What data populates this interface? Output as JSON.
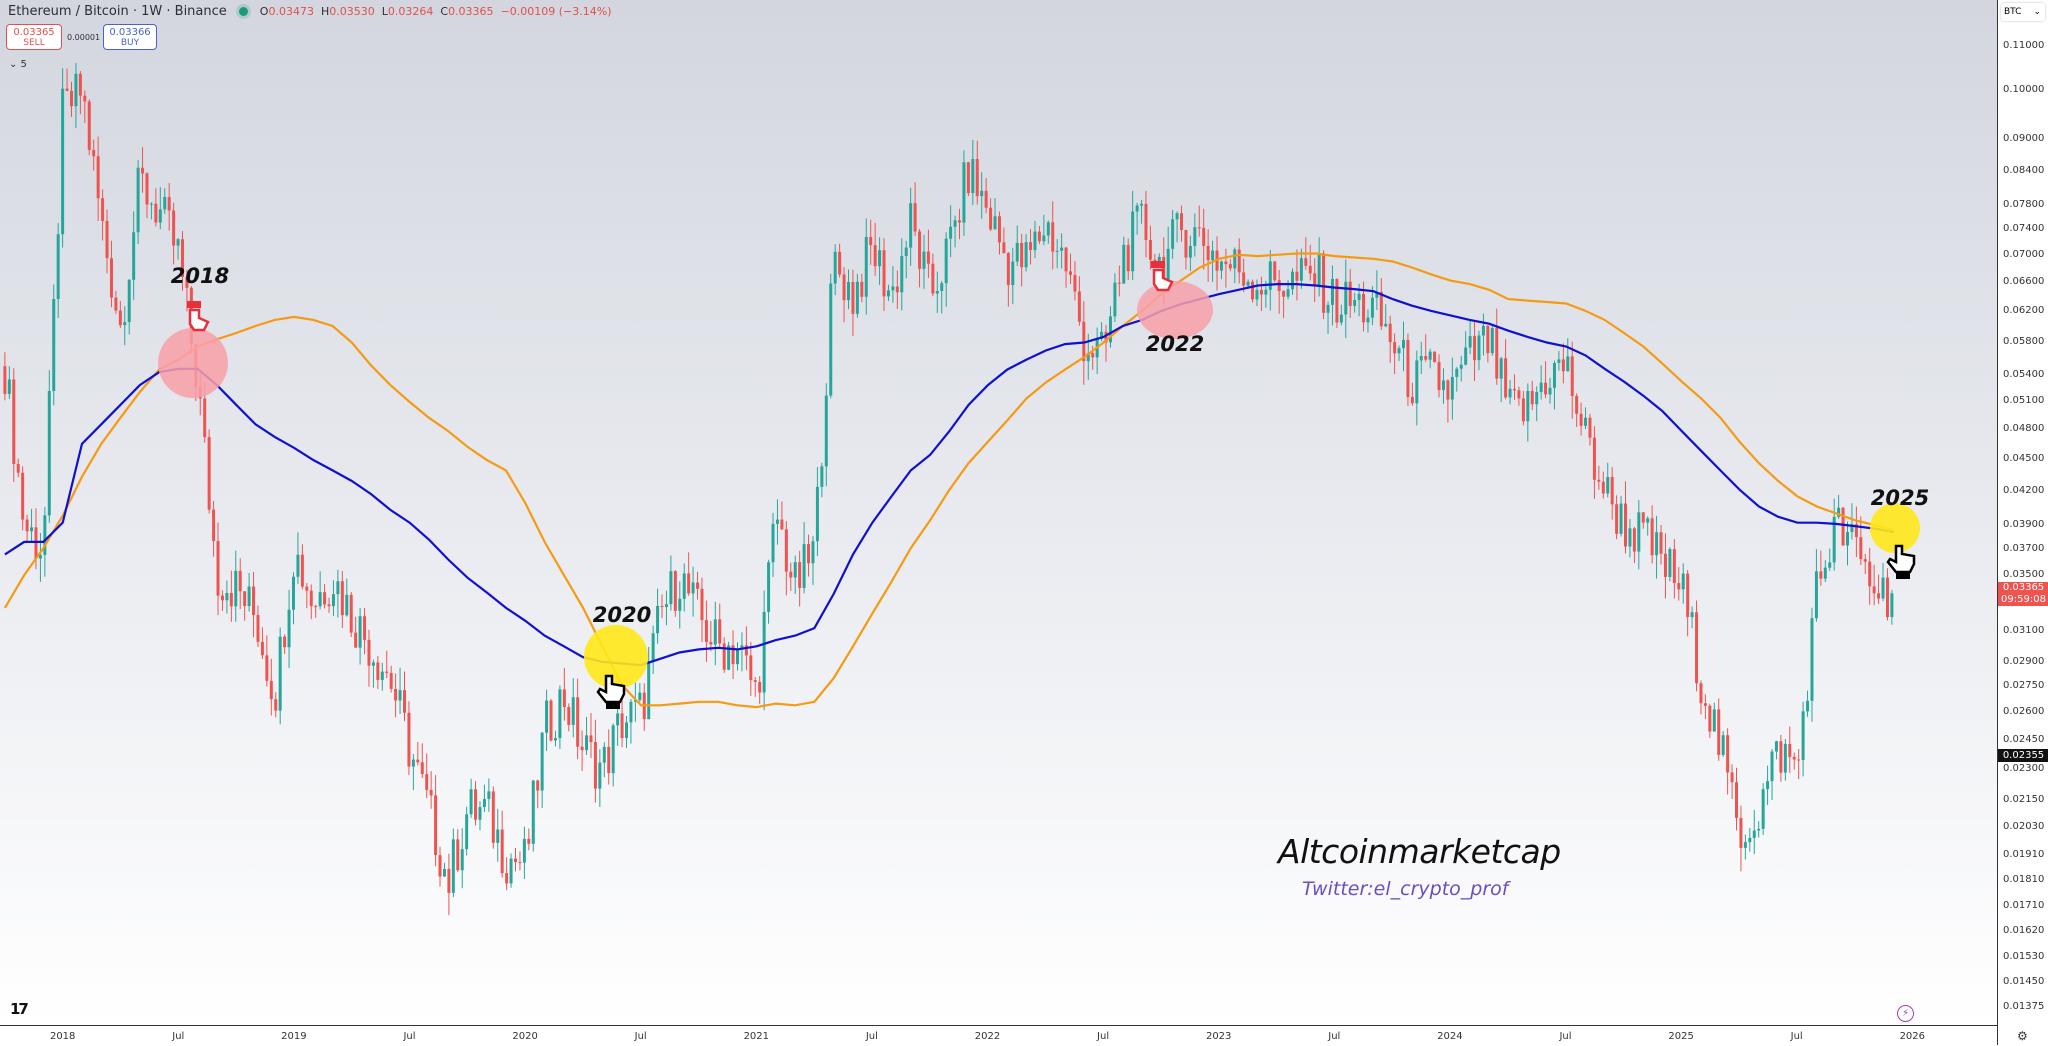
{
  "header": {
    "title": "Ethereum / Bitcoin · 1W · Binance",
    "open_label": "O",
    "open": "0.03473",
    "high_label": "H",
    "high": "0.03530",
    "low_label": "L",
    "low": "0.03264",
    "close_label": "C",
    "close": "0.03365",
    "change": "−0.00109 (−3.14%)"
  },
  "trade": {
    "sell_price": "0.03365",
    "sell_label": "SELL",
    "spread": "0.00001",
    "buy_price": "0.03366",
    "buy_label": "BUY"
  },
  "indicators_toggle": "⌄ 5",
  "annotations": {
    "a2018": "2018",
    "a2020": "2020",
    "a2022": "2022",
    "a2025": "2025",
    "watermark": "Altcoinmarketcap",
    "twitter": "Twitter:el_crypto_prof"
  },
  "price_axis": {
    "currency": "BTC",
    "current_price": "0.03365",
    "countdown": "09:59:08",
    "crosshair_price": "0.02355"
  },
  "colors": {
    "up": "#26a69a",
    "down": "#ef5350",
    "ma_fast": "#1010d0",
    "ma_slow": "#f59a12",
    "highlight_red": "#f8a0a8",
    "highlight_yellow": "#ffe81a"
  },
  "icons": [
    "tradingview-logo-icon",
    "hand-pointer-icon",
    "lightning-icon",
    "settings-gear-icon",
    "chevron-down-icon"
  ],
  "chart_data": {
    "type": "candlestick",
    "interval": "1W",
    "yscale": "log",
    "ylim": [
      0.0133,
      0.115
    ],
    "grid": false,
    "y_ticks": [
      "0.11000",
      "0.10000",
      "0.09000",
      "0.08400",
      "0.07800",
      "0.07400",
      "0.07000",
      "0.06600",
      "0.06200",
      "0.05800",
      "0.05400",
      "0.05100",
      "0.04800",
      "0.04500",
      "0.04200",
      "0.03900",
      "0.03700",
      "0.03500",
      "0.03100",
      "0.02900",
      "0.02750",
      "0.02600",
      "0.02450",
      "0.02300",
      "0.02150",
      "0.02030",
      "0.01910",
      "0.01810",
      "0.01710",
      "0.01620",
      "0.01530",
      "0.01450",
      "0.01375"
    ],
    "x_ticks": [
      "2018",
      "Jul",
      "2019",
      "Jul",
      "2020",
      "Jul",
      "2021",
      "Jul",
      "2022",
      "Jul",
      "2023",
      "Jul",
      "2024",
      "Jul",
      "2025",
      "Jul",
      "2026"
    ],
    "start_month": "2017-10",
    "end_month": "2025-12",
    "monthly_close": [
      0.055,
      0.039,
      0.037,
      0.095,
      0.1,
      0.075,
      0.06,
      0.082,
      0.077,
      0.07,
      0.053,
      0.035,
      0.034,
      0.032,
      0.027,
      0.037,
      0.033,
      0.035,
      0.032,
      0.03,
      0.028,
      0.024,
      0.021,
      0.018,
      0.021,
      0.021,
      0.019,
      0.0188,
      0.025,
      0.027,
      0.024,
      0.023,
      0.0255,
      0.026,
      0.032,
      0.035,
      0.032,
      0.03,
      0.03,
      0.027,
      0.04,
      0.034,
      0.037,
      0.069,
      0.064,
      0.071,
      0.064,
      0.075,
      0.064,
      0.071,
      0.084,
      0.077,
      0.069,
      0.069,
      0.075,
      0.069,
      0.058,
      0.056,
      0.07,
      0.075,
      0.068,
      0.074,
      0.073,
      0.069,
      0.068,
      0.066,
      0.066,
      0.066,
      0.067,
      0.063,
      0.063,
      0.062,
      0.058,
      0.053,
      0.054,
      0.052,
      0.056,
      0.058,
      0.05,
      0.05,
      0.054,
      0.055,
      0.047,
      0.042,
      0.039,
      0.038,
      0.036,
      0.034,
      0.028,
      0.024,
      0.02,
      0.021,
      0.024,
      0.023,
      0.034,
      0.039,
      0.037,
      0.034,
      0.03365
    ],
    "ma_blue": [
      0.0366,
      0.0376,
      0.0376,
      0.0392,
      0.0465,
      0.0485,
      0.0506,
      0.0528,
      0.0543,
      0.0547,
      0.0547,
      0.0528,
      0.0506,
      0.0485,
      0.0472,
      0.0461,
      0.0449,
      0.0439,
      0.0429,
      0.0417,
      0.0403,
      0.0392,
      0.0378,
      0.0362,
      0.0348,
      0.0337,
      0.0326,
      0.0317,
      0.0307,
      0.03,
      0.0293,
      0.029,
      0.0289,
      0.0288,
      0.0292,
      0.0296,
      0.0298,
      0.0299,
      0.0298,
      0.03,
      0.0304,
      0.0307,
      0.0312,
      0.0336,
      0.0366,
      0.0392,
      0.0415,
      0.0439,
      0.0454,
      0.0478,
      0.0506,
      0.0528,
      0.0546,
      0.0558,
      0.0569,
      0.0577,
      0.0579,
      0.0586,
      0.06,
      0.0608,
      0.062,
      0.0629,
      0.0636,
      0.0643,
      0.0649,
      0.0655,
      0.0657,
      0.0657,
      0.0655,
      0.0652,
      0.065,
      0.0647,
      0.0636,
      0.0627,
      0.062,
      0.0614,
      0.0608,
      0.0603,
      0.0594,
      0.0586,
      0.0579,
      0.0574,
      0.0563,
      0.0547,
      0.0532,
      0.0516,
      0.0499,
      0.0478,
      0.0458,
      0.0439,
      0.0421,
      0.0406,
      0.0397,
      0.0392,
      0.0392,
      0.0391,
      0.0389,
      0.0387,
      0.0384
    ],
    "ma_orange": [
      0.0326,
      0.035,
      0.0371,
      0.0398,
      0.0433,
      0.0465,
      0.0492,
      0.052,
      0.0546,
      0.0558,
      0.0574,
      0.0583,
      0.0591,
      0.06,
      0.0608,
      0.0612,
      0.0608,
      0.06,
      0.0579,
      0.0551,
      0.0528,
      0.0509,
      0.0492,
      0.0478,
      0.0462,
      0.0449,
      0.0439,
      0.0409,
      0.0376,
      0.035,
      0.0326,
      0.03,
      0.0276,
      0.0264,
      0.0264,
      0.0265,
      0.0266,
      0.0266,
      0.0264,
      0.0263,
      0.0265,
      0.0264,
      0.0266,
      0.028,
      0.03,
      0.0322,
      0.0345,
      0.0371,
      0.0394,
      0.0421,
      0.0446,
      0.0467,
      0.0489,
      0.0513,
      0.0531,
      0.0546,
      0.0561,
      0.0579,
      0.06,
      0.062,
      0.0643,
      0.0662,
      0.0681,
      0.0694,
      0.07,
      0.0698,
      0.07,
      0.0702,
      0.0702,
      0.0698,
      0.0696,
      0.0694,
      0.069,
      0.0681,
      0.0671,
      0.0662,
      0.0657,
      0.0649,
      0.0636,
      0.0634,
      0.0632,
      0.063,
      0.062,
      0.0608,
      0.0591,
      0.0574,
      0.0553,
      0.0532,
      0.0513,
      0.0492,
      0.0467,
      0.0446,
      0.0429,
      0.0415,
      0.0406,
      0.04,
      0.0394,
      0.039,
      0.0386
    ]
  }
}
